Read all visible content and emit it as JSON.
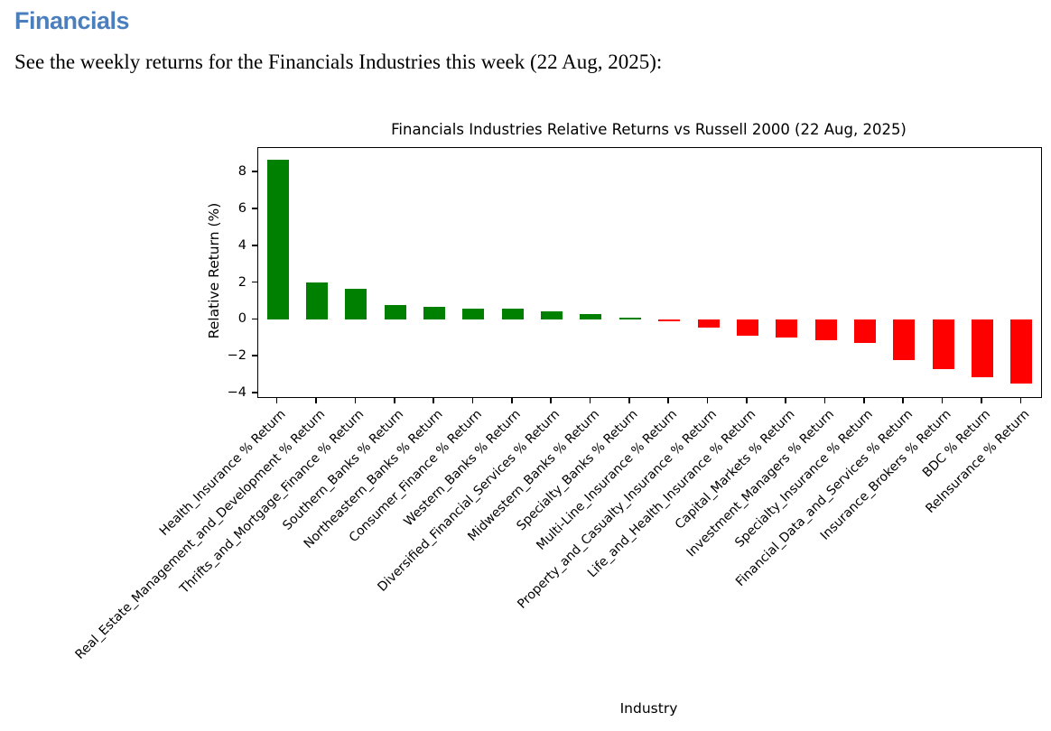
{
  "page": {
    "heading": "Financials",
    "intro": "See the weekly returns for the Financials Industries this week (22 Aug, 2025):"
  },
  "colors": {
    "heading_blue": "#4a7ebd",
    "positive_bar": "#008000",
    "negative_bar": "#ff0000",
    "axis": "#000000"
  },
  "chart_data": {
    "type": "bar",
    "title": "Financials Industries Relative Returns vs Russell 2000 (22 Aug, 2025)",
    "xlabel": "Industry",
    "ylabel": "Relative Return (%)",
    "ylim": [
      -4.2,
      9.33
    ],
    "yticks": [
      8,
      6,
      4,
      2,
      0,
      -2,
      -4
    ],
    "grid": false,
    "legend_position": "none",
    "bar_color_rule": "green if value >= 0 else red",
    "categories": [
      "Health_Insurance % Return",
      "Real_Estate_Management_and_Development % Return",
      "Thrifts_and_Mortgage_Finance % Return",
      "Southern_Banks % Return",
      "Northeastern_Banks % Return",
      "Consumer_Finance % Return",
      "Western_Banks % Return",
      "Diversified_Financial_Services % Return",
      "Midwestern_Banks % Return",
      "Specialty_Banks % Return",
      "Multi-Line_Insurance % Return",
      "Property_and_Casualty_Insurance % Return",
      "Life_and_Health_Insurance % Return",
      "Capital_Markets % Return",
      "Investment_Managers % Return",
      "Specialty_Insurance % Return",
      "Financial_Data_and_Services % Return",
      "Insurance_Brokers % Return",
      "BDC % Return",
      "ReInsurance % Return"
    ],
    "values": [
      8.68,
      2.02,
      1.68,
      0.78,
      0.7,
      0.62,
      0.59,
      0.46,
      0.33,
      0.11,
      -0.08,
      -0.41,
      -0.87,
      -0.97,
      -1.11,
      -1.26,
      -2.21,
      -2.67,
      -3.11,
      -3.47
    ]
  }
}
